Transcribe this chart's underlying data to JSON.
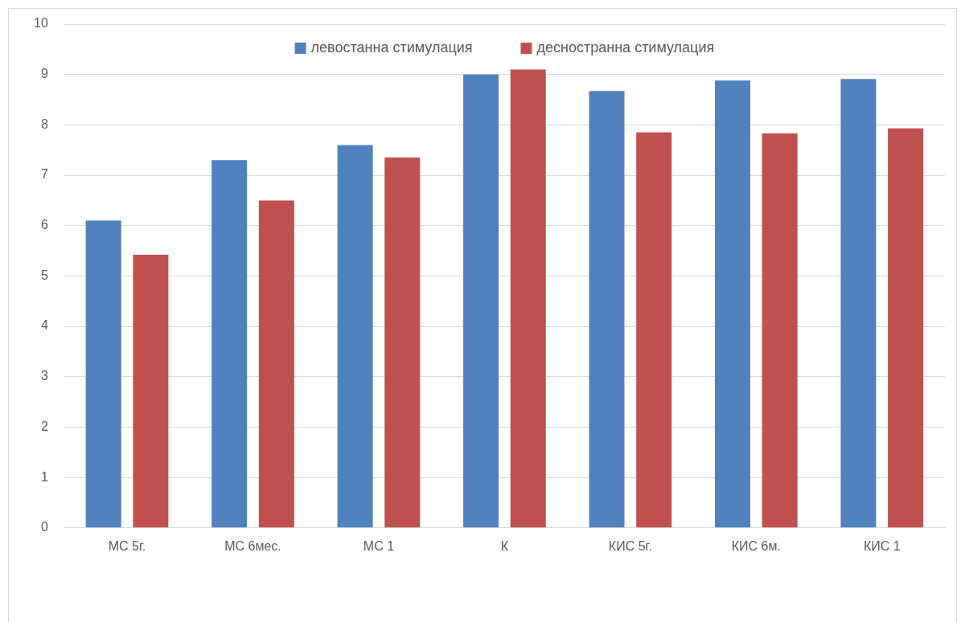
{
  "chart_data": {
    "type": "bar",
    "categories": [
      "МС 5г.",
      "МС 6мес.",
      "МС 1",
      "К",
      "КИС 5г.",
      "КИС 6м.",
      "КИС 1"
    ],
    "series": [
      {
        "name": "левостанна стимулация",
        "color": "#4f81bd",
        "values": [
          6.1,
          7.3,
          7.6,
          9.0,
          8.67,
          8.88,
          8.91
        ]
      },
      {
        "name": "десностранна стимулация",
        "color": "#c0504d",
        "values": [
          5.42,
          6.5,
          7.35,
          9.1,
          7.85,
          7.83,
          7.93
        ]
      }
    ],
    "ylim": [
      0,
      10
    ],
    "yticks": [
      0,
      1,
      2,
      3,
      4,
      5,
      6,
      7,
      8,
      9,
      10
    ],
    "grid": "y",
    "legend": "top"
  }
}
